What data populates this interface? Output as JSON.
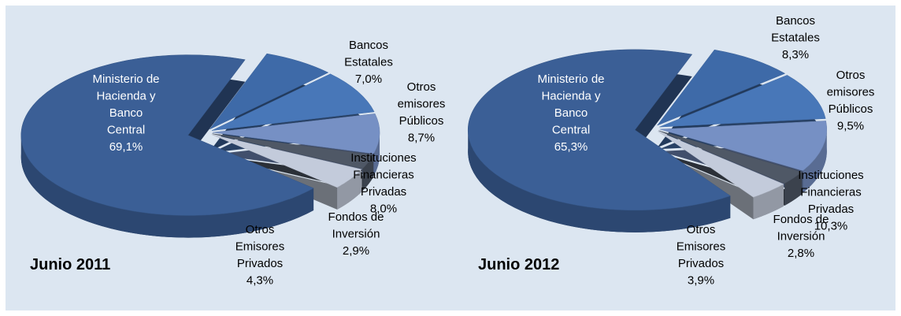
{
  "chart_data": [
    {
      "type": "pie3d",
      "title": "Junio 2011",
      "categories": [
        [
          "Ministerio de",
          "Hacienda y",
          "Banco",
          "Central"
        ],
        [
          "Bancos",
          "Estatales"
        ],
        [
          "Otros",
          "emisores",
          "Públicos"
        ],
        [
          "Instituciones",
          "Financieras",
          "Privadas"
        ],
        [
          "Fondos de",
          "Inversión"
        ],
        [
          "Otros",
          "Emisores",
          "Privados"
        ]
      ],
      "values": [
        69.1,
        7.0,
        8.7,
        8.0,
        2.9,
        4.3
      ],
      "value_labels": [
        "69,1%",
        "7,0%",
        "8,7%",
        "8,0%",
        "2,9%",
        "4,3%"
      ],
      "colors": [
        "#3b5f96",
        "#3e6aa8",
        "#4877b8",
        "#7690c4",
        "#4f5866",
        "#c3cbdb"
      ]
    },
    {
      "type": "pie3d",
      "title": "Junio 2012",
      "categories": [
        [
          "Ministerio de",
          "Hacienda y",
          "Banco",
          "Central"
        ],
        [
          "Bancos",
          "Estatales"
        ],
        [
          "Otros",
          "emisores",
          "Públicos"
        ],
        [
          "Instituciones",
          "Financieras",
          "Privadas"
        ],
        [
          "Fondos de",
          "Inversión"
        ],
        [
          "Otros",
          "Emisores",
          "Privados"
        ]
      ],
      "values": [
        65.3,
        8.3,
        9.5,
        10.3,
        2.8,
        3.9
      ],
      "value_labels": [
        "65,3%",
        "8,3%",
        "9,5%",
        "10,3%",
        "2,8%",
        "3,9%"
      ],
      "colors": [
        "#3b5f96",
        "#3e6aa8",
        "#4877b8",
        "#7690c4",
        "#4f5866",
        "#c3cbdb"
      ]
    }
  ]
}
